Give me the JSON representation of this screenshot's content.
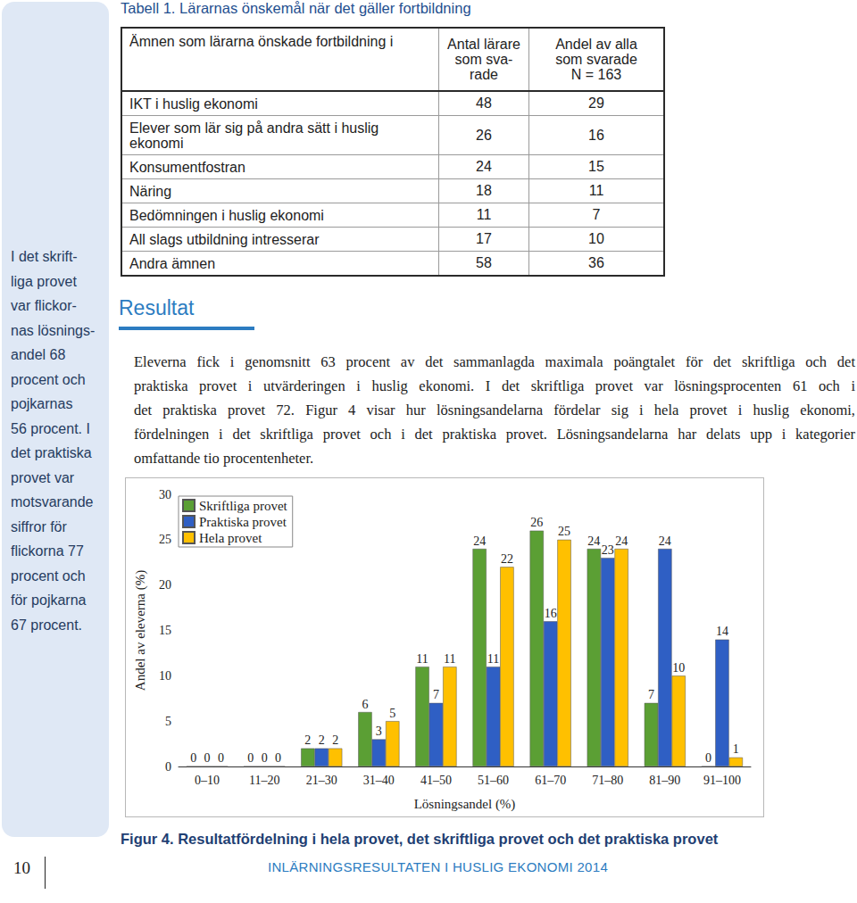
{
  "page_number": "10",
  "sidebar": {
    "lines": [
      "I det skrift-",
      "liga provet",
      "var flickor-",
      "nas lösnings-",
      "andel 68",
      "procent och",
      "pojkarnas",
      "56 procent. I",
      "det praktiska",
      "provet var",
      "motsvarande",
      "siffror för",
      "flickorna 77",
      "procent och",
      "för pojkarna",
      "67 procent."
    ]
  },
  "table": {
    "title": "Tabell 1. Lärarnas önskemål när det gäller fortbildning",
    "header": [
      [
        "Ämnen som lärarna önskade fortbildning i"
      ],
      [
        "Antal lärare",
        "som sva-",
        "rade"
      ],
      [
        "Andel av alla",
        "som svarade",
        "N = 163"
      ]
    ],
    "rows": [
      [
        [
          "IKT i huslig ekonomi"
        ],
        48,
        29
      ],
      [
        [
          "Elever som lär sig på andra sätt i huslig",
          "ekonomi"
        ],
        26,
        16
      ],
      [
        [
          "Konsumentfostran"
        ],
        24,
        15
      ],
      [
        [
          "Näring"
        ],
        18,
        11
      ],
      [
        [
          "Bedömningen i huslig ekonomi"
        ],
        11,
        7
      ],
      [
        [
          "All slags utbildning intresserar"
        ],
        17,
        10
      ],
      [
        [
          "Andra ämnen"
        ],
        58,
        36
      ]
    ]
  },
  "section": {
    "heading": "Resultat",
    "paragraph_lines": [
      "Eleverna fick i genomsnitt 63 procent av det sammanlagda maximala poängtalet för det skriftliga och det",
      "praktiska provet i utvärderingen i huslig ekonomi. I det skriftliga provet var lösningsprocenten 61 och i",
      "det praktiska provet 72. Figur 4 visar hur lösningsandelarna fördelar sig i hela provet i huslig ekonomi,",
      "fördelningen i det skriftliga provet och i det praktiska provet. Lösningsandelarna har delats upp i kategorier",
      "omfattande tio procentenheter."
    ]
  },
  "chart_data": {
    "type": "bar",
    "xlabel": "Lösningsandel (%)",
    "ylabel": "Andel av eleverna (%)",
    "categories": [
      "0–10",
      "11–20",
      "21–30",
      "31–40",
      "41–50",
      "51–60",
      "61–70",
      "71–80",
      "81–90",
      "91–100"
    ],
    "series": [
      {
        "name": "Skriftliga provet",
        "color": "#5b9f34",
        "values": [
          0,
          0,
          2,
          6,
          11,
          24,
          26,
          24,
          7,
          0
        ]
      },
      {
        "name": "Praktiska provet",
        "color": "#2f5fc4",
        "values": [
          0,
          0,
          2,
          3,
          7,
          11,
          16,
          23,
          24,
          14
        ]
      },
      {
        "name": "Hela provet",
        "color": "#ffc000",
        "values": [
          0,
          0,
          2,
          5,
          11,
          22,
          25,
          24,
          10,
          1
        ]
      }
    ],
    "ylim": [
      0,
      30
    ],
    "yticks": [
      0,
      5,
      10,
      15,
      20,
      25,
      30
    ],
    "grid": false,
    "legend": "top-left",
    "data_labels": true
  },
  "caption": "Figur 4. Resultatfördelning i hela provet, det skriftliga provet och det praktiska provet",
  "footer": "INLÄRNINGSRESULTATEN I HUSLIG EKONOMI 2014"
}
